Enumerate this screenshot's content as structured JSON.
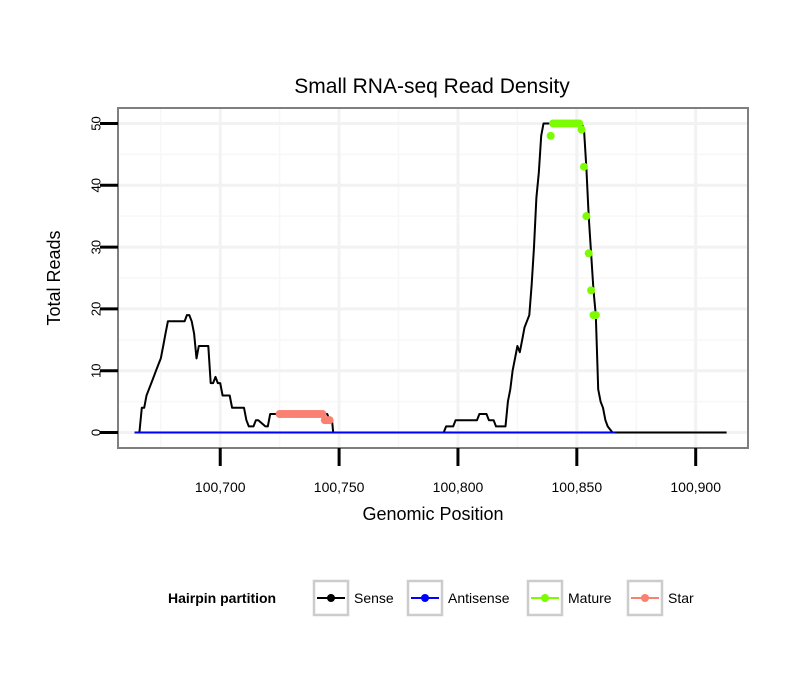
{
  "chart_data": {
    "type": "line",
    "title": "Small RNA-seq Read Density",
    "xlabel": "Genomic Position",
    "ylabel": "Total Reads",
    "xlim": [
      100657,
      100922
    ],
    "ylim": [
      -2.5,
      52.5
    ],
    "x_ticks": [
      100700,
      100750,
      100800,
      100850,
      100900
    ],
    "x_tick_labels": [
      "100,700",
      "100,750",
      "100,800",
      "100,850",
      "100,900"
    ],
    "y_ticks": [
      0,
      10,
      20,
      30,
      40,
      50
    ],
    "y_tick_labels": [
      "0",
      "10",
      "20",
      "30",
      "40",
      "50"
    ],
    "grid": true,
    "legend": {
      "title": "Hairpin partition",
      "position": "bottom",
      "items": [
        {
          "label": "Sense",
          "color": "#000000"
        },
        {
          "label": "Antisense",
          "color": "#0000ff"
        },
        {
          "label": "Mature",
          "color": "#7cfc00"
        },
        {
          "label": "Star",
          "color": "#fa8072"
        }
      ]
    },
    "series": [
      {
        "name": "Sense",
        "color": "#000000",
        "style": "line",
        "x": [
          100664,
          100666,
          100667,
          100668,
          100669,
          100670,
          100671,
          100672,
          100673,
          100674,
          100675,
          100676,
          100677,
          100678,
          100679,
          100680,
          100685,
          100686,
          100687,
          100688,
          100689,
          100690,
          100691,
          100692,
          100693,
          100695,
          100696,
          100697,
          100698,
          100699,
          100700,
          100701,
          100702,
          100703,
          100704,
          100705,
          100710,
          100711,
          100712,
          100713,
          100714,
          100715,
          100716,
          100719,
          100720,
          100721,
          100722,
          100723,
          100724,
          100725,
          100740,
          100745,
          100746,
          100747,
          100747.5,
          100794,
          100795,
          100798,
          100799,
          100808,
          100809,
          100812,
          100813,
          100815,
          100816,
          100820,
          100821,
          100822,
          100823,
          100824,
          100825,
          100826,
          100827,
          100828,
          100829,
          100830,
          100831,
          100832,
          100833,
          100834,
          100835,
          100836,
          100837,
          100838,
          100839,
          100840,
          100852,
          100853,
          100854,
          100855,
          100856,
          100857,
          100858,
          100859,
          100860,
          100861,
          100862,
          100863,
          100864,
          100865,
          100866,
          100867,
          100913
        ],
        "values": [
          0,
          0,
          4,
          4,
          6,
          7,
          8,
          9,
          10,
          11,
          12,
          14,
          16,
          18,
          18,
          18,
          18,
          19,
          19,
          18,
          16,
          12,
          14,
          14,
          14,
          14,
          8,
          8,
          9,
          8,
          8,
          6,
          6,
          6,
          6,
          4,
          4,
          2,
          1,
          1,
          1,
          2,
          2,
          1,
          1,
          3,
          3,
          3,
          3,
          3,
          3,
          3,
          2,
          2,
          0,
          0,
          1,
          1,
          2,
          2,
          3,
          3,
          2,
          2,
          1,
          1,
          5,
          7,
          10,
          12,
          14,
          13,
          15,
          17,
          18,
          19,
          24,
          30,
          38,
          42,
          48,
          50,
          50,
          50,
          50,
          50,
          50,
          49,
          43,
          35,
          29,
          23,
          19,
          7,
          5,
          4,
          2,
          1,
          0.5,
          0,
          0,
          0,
          0
        ]
      },
      {
        "name": "Antisense",
        "color": "#0000ff",
        "style": "line",
        "x": [
          100664,
          100866
        ],
        "values": [
          0,
          0
        ]
      },
      {
        "name": "Mature",
        "color": "#7cfc00",
        "style": "points",
        "x": [
          100839,
          100840,
          100841,
          100842,
          100843,
          100844,
          100845,
          100846,
          100847,
          100848,
          100849,
          100850,
          100851,
          100852,
          100853,
          100854,
          100855,
          100856,
          100857,
          100858
        ],
        "values": [
          48,
          50,
          50,
          50,
          50,
          50,
          50,
          50,
          50,
          50,
          50,
          50,
          50,
          49,
          43,
          35,
          29,
          23,
          19,
          19
        ]
      },
      {
        "name": "Star",
        "color": "#fa8072",
        "style": "points",
        "x": [
          100725,
          100726,
          100727,
          100728,
          100729,
          100730,
          100731,
          100732,
          100733,
          100734,
          100735,
          100736,
          100737,
          100738,
          100739,
          100740,
          100741,
          100742,
          100743,
          100744,
          100745,
          100746
        ],
        "values": [
          3,
          3,
          3,
          3,
          3,
          3,
          3,
          3,
          3,
          3,
          3,
          3,
          3,
          3,
          3,
          3,
          3,
          3,
          3,
          2,
          2,
          2
        ]
      }
    ]
  }
}
